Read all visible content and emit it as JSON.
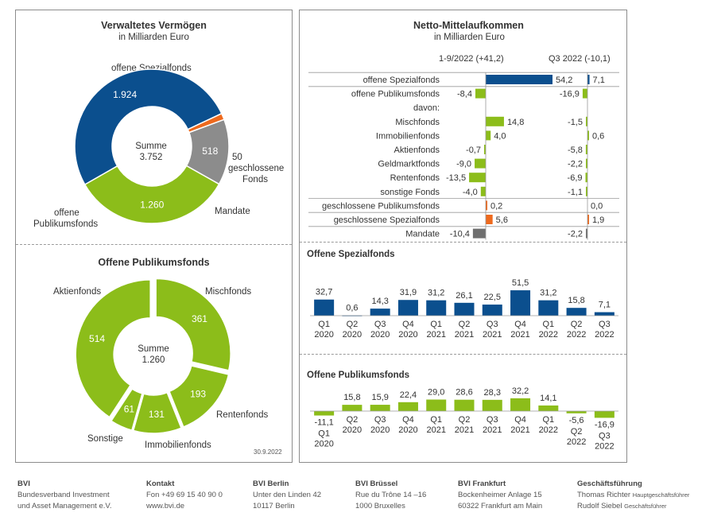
{
  "colors": {
    "blue": "#0b4f8e",
    "green": "#8cbd1a",
    "gray": "#8c8c8c",
    "orange": "#ee6a1e"
  },
  "left_top": {
    "title": "Verwaltetes Vermögen",
    "subtitle": "in Milliarden Euro",
    "center_label": "Summe",
    "center_value": "3.752",
    "slices": [
      {
        "name": "offene Spezialfonds",
        "value": 1924,
        "label": "1.924",
        "color": "#0b4f8e"
      },
      {
        "name": "geschlossene Fonds",
        "value": 50,
        "label": "50",
        "color": "#ee6a1e"
      },
      {
        "name": "Mandate",
        "value": 518,
        "label": "518",
        "color": "#8c8c8c"
      },
      {
        "name": "offene Publikumsfonds",
        "value": 1260,
        "label": "1.260",
        "color": "#8cbd1a"
      }
    ],
    "labels": {
      "spezial": "offene Spezialfonds",
      "geschl_1": "geschlossene",
      "geschl_2": "Fonds",
      "mandate": "Mandate",
      "publikum_1": "offene",
      "publikum_2": "Publikumsfonds"
    }
  },
  "left_bottom": {
    "title": "Offene Publikumsfonds",
    "center_label": "Summe",
    "center_value": "1.260",
    "date": "30.9.2022",
    "slices": [
      {
        "name": "Mischfonds",
        "value": 361,
        "label": "361"
      },
      {
        "name": "Rentenfonds",
        "value": 193,
        "label": "193"
      },
      {
        "name": "Immobilienfonds",
        "value": 131,
        "label": "131"
      },
      {
        "name": "Sonstige",
        "value": 61,
        "label": "61"
      },
      {
        "name": "Aktienfonds",
        "value": 514,
        "label": "514"
      }
    ]
  },
  "netto": {
    "title": "Netto-Mittelaufkommen",
    "subtitle": "in Milliarden Euro",
    "col1_header": "1-9/2022 (+41,2)",
    "col2_header": "Q3 2022 (-10,1)",
    "rows": [
      {
        "label": "offene Spezialfonds",
        "v1": 54.2,
        "t1": "54,2",
        "v2": 7.1,
        "t2": "7,1",
        "color": "#0b4f8e"
      },
      {
        "label": "offene Publikumsfonds",
        "v1": -8.4,
        "t1": "-8,4",
        "v2": -16.9,
        "t2": "-16,9",
        "color": "#8cbd1a"
      },
      {
        "label": "davon:",
        "v1": null,
        "t1": "",
        "v2": null,
        "t2": "",
        "color": "#8cbd1a"
      },
      {
        "label": "Mischfonds",
        "v1": 14.8,
        "t1": "14,8",
        "v2": -1.5,
        "t2": "-1,5",
        "color": "#8cbd1a"
      },
      {
        "label": "Immobilienfonds",
        "v1": 4.0,
        "t1": "4,0",
        "v2": 0.6,
        "t2": "0,6",
        "color": "#8cbd1a"
      },
      {
        "label": "Aktienfonds",
        "v1": -0.7,
        "t1": "-0,7",
        "v2": -5.8,
        "t2": "-5,8",
        "color": "#8cbd1a"
      },
      {
        "label": "Geldmarktfonds",
        "v1": -9.0,
        "t1": "-9,0",
        "v2": -2.2,
        "t2": "-2,2",
        "color": "#8cbd1a"
      },
      {
        "label": "Rentenfonds",
        "v1": -13.5,
        "t1": "-13,5",
        "v2": -6.9,
        "t2": "-6,9",
        "color": "#8cbd1a"
      },
      {
        "label": "sonstige Fonds",
        "v1": -4.0,
        "t1": "-4,0",
        "v2": -1.1,
        "t2": "-1,1",
        "color": "#8cbd1a"
      },
      {
        "label": "geschlossene Publikumsfonds",
        "v1": 0.2,
        "t1": "0,2",
        "v2": 0.0,
        "t2": "0,0",
        "color": "#ee6a1e"
      },
      {
        "label": "geschlossene Spezialfonds",
        "v1": 5.6,
        "t1": "5,6",
        "v2": 1.9,
        "t2": "1,9",
        "color": "#ee6a1e"
      },
      {
        "label": "Mandate",
        "v1": -10.4,
        "t1": "-10,4",
        "v2": -2.2,
        "t2": "-2,2",
        "color": "#6f6f6f"
      }
    ]
  },
  "spezial": {
    "title": "Offene Spezialfonds",
    "quarters": [
      "Q1",
      "Q2",
      "Q3",
      "Q4",
      "Q1",
      "Q2",
      "Q3",
      "Q4",
      "Q1",
      "Q2",
      "Q3"
    ],
    "years": [
      "2020",
      "2020",
      "2020",
      "2020",
      "2021",
      "2021",
      "2021",
      "2021",
      "2022",
      "2022",
      "2022"
    ],
    "values": [
      32.7,
      0.6,
      14.3,
      31.9,
      31.2,
      26.1,
      22.5,
      51.5,
      31.2,
      15.8,
      7.1
    ],
    "labels": [
      "32,7",
      "0,6",
      "14,3",
      "31,9",
      "31,2",
      "26,1",
      "22,5",
      "51,5",
      "31,2",
      "15,8",
      "7,1"
    ]
  },
  "publikum": {
    "title": "Offene Publikumsfonds",
    "quarters": [
      "Q1",
      "Q2",
      "Q3",
      "Q4",
      "Q1",
      "Q2",
      "Q3",
      "Q4",
      "Q1",
      "Q2",
      "Q3"
    ],
    "years": [
      "2020",
      "2020",
      "2020",
      "2020",
      "2021",
      "2021",
      "2021",
      "2021",
      "2022",
      "2022",
      "2022"
    ],
    "values": [
      -11.1,
      15.8,
      15.9,
      22.4,
      29.0,
      28.6,
      28.3,
      32.2,
      14.1,
      -5.6,
      -16.9
    ],
    "labels": [
      "-11,1",
      "15,8",
      "15,9",
      "22,4",
      "29,0",
      "28,6",
      "28,3",
      "32,2",
      "14,1",
      "-5,6",
      "-16,9"
    ]
  },
  "chart_data": [
    {
      "type": "pie",
      "title": "Verwaltetes Vermögen",
      "subtitle": "in Milliarden Euro",
      "categories": [
        "offene Spezialfonds",
        "geschlossene Fonds",
        "Mandate",
        "offene Publikumsfonds"
      ],
      "values": [
        1924,
        50,
        518,
        1260
      ],
      "total": 3752
    },
    {
      "type": "pie",
      "title": "Offene Publikumsfonds",
      "categories": [
        "Mischfonds",
        "Rentenfonds",
        "Immobilienfonds",
        "Sonstige",
        "Aktienfonds"
      ],
      "values": [
        361,
        193,
        131,
        61,
        514
      ],
      "total": 1260
    },
    {
      "type": "bar",
      "title": "Netto-Mittelaufkommen",
      "subtitle": "in Milliarden Euro",
      "categories": [
        "offene Spezialfonds",
        "offene Publikumsfonds",
        "Mischfonds",
        "Immobilienfonds",
        "Aktienfonds",
        "Geldmarktfonds",
        "Rentenfonds",
        "sonstige Fonds",
        "geschlossene Publikumsfonds",
        "geschlossene Spezialfonds",
        "Mandate"
      ],
      "series": [
        {
          "name": "1-9/2022 (+41,2)",
          "values": [
            54.2,
            -8.4,
            14.8,
            4.0,
            -0.7,
            -9.0,
            -13.5,
            -4.0,
            0.2,
            5.6,
            -10.4
          ]
        },
        {
          "name": "Q3 2022 (-10,1)",
          "values": [
            7.1,
            -16.9,
            -1.5,
            0.6,
            -5.8,
            -2.2,
            -6.9,
            -1.1,
            0.0,
            1.9,
            -2.2
          ]
        }
      ]
    },
    {
      "type": "bar",
      "title": "Offene Spezialfonds",
      "categories": [
        "Q1 2020",
        "Q2 2020",
        "Q3 2020",
        "Q4 2020",
        "Q1 2021",
        "Q2 2021",
        "Q3 2021",
        "Q4 2021",
        "Q1 2022",
        "Q2 2022",
        "Q3 2022"
      ],
      "values": [
        32.7,
        0.6,
        14.3,
        31.9,
        31.2,
        26.1,
        22.5,
        51.5,
        31.2,
        15.8,
        7.1
      ]
    },
    {
      "type": "bar",
      "title": "Offene Publikumsfonds",
      "categories": [
        "Q1 2020",
        "Q2 2020",
        "Q3 2020",
        "Q4 2020",
        "Q1 2021",
        "Q2 2021",
        "Q3 2021",
        "Q4 2021",
        "Q1 2022",
        "Q2 2022",
        "Q3 2022"
      ],
      "values": [
        -11.1,
        15.8,
        15.9,
        22.4,
        29.0,
        28.6,
        28.3,
        32.2,
        14.1,
        -5.6,
        -16.9
      ]
    }
  ],
  "footer": {
    "bvi": {
      "h": "BVI",
      "l1": "Bundesverband Investment",
      "l2": "und Asset Management e.V."
    },
    "kontakt": {
      "h": "Kontakt",
      "l1": "Fon +49 69 15 40 90 0",
      "l2": "www.bvi.de"
    },
    "berlin": {
      "h": "BVI Berlin",
      "l1": "Unter den Linden 42",
      "l2": "10117 Berlin"
    },
    "bruessel": {
      "h": "BVI Brüssel",
      "l1": "Rue du Trône 14 –16",
      "l2": "1000 Bruxelles"
    },
    "frankfurt": {
      "h": "BVI Frankfurt",
      "l1": "Bockenheimer Anlage 15",
      "l2": "60322 Frankfurt am Main"
    },
    "gf": {
      "h": "Geschäftsführung",
      "n1": "Thomas Richter",
      "r1": "Hauptgeschäftsführer",
      "n2": "Rudolf Siebel",
      "r2": "Geschäftsführer"
    }
  }
}
